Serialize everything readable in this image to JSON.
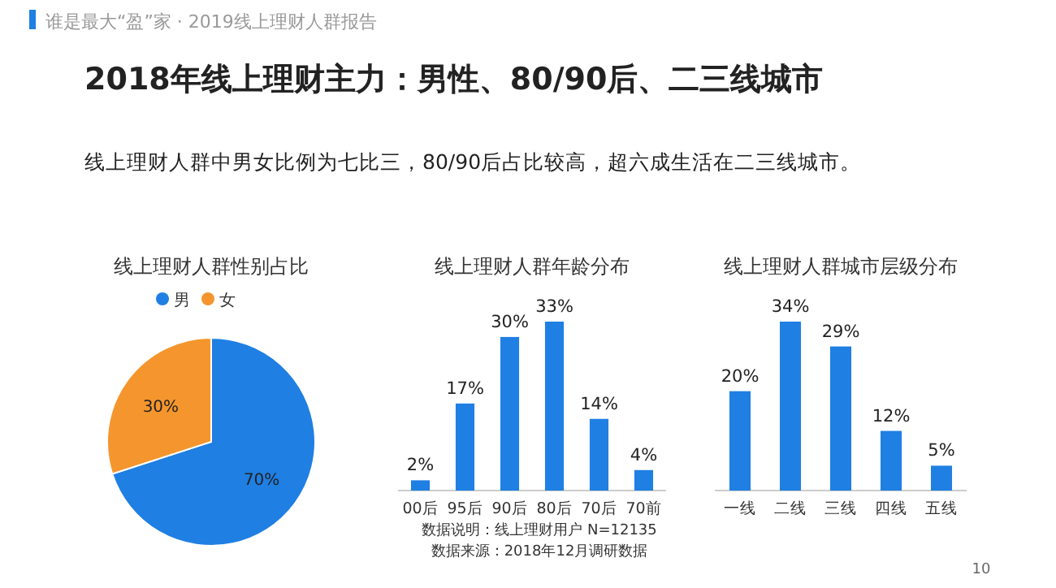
{
  "chart_data": [
    {
      "type": "other",
      "title": "2018年线上理财主力：男性、80/90后、二三线城市",
      "subtitle": "线上理财人群中男女比例为七比三，80/90后占比较高，超六成生活在二三线城市。",
      "annotations": [
        "谁是最大“盈”家 · 2019线上理财人群报告",
        "数据说明：线上理财用户 N=12135",
        "数据来源：2018年12月调研数据",
        "10"
      ]
    },
    {
      "type": "pie",
      "title": "线上理财人群性别占比",
      "categories": [
        "男",
        "女"
      ],
      "values": [
        70,
        30
      ],
      "colors": [
        "#1f7fe3",
        "#f5952d"
      ],
      "value_labels": [
        "70%",
        "30%"
      ],
      "legend": "top"
    },
    {
      "type": "bar",
      "title": "线上理财人群年龄分布",
      "categories": [
        "00后",
        "95后",
        "90后",
        "80后",
        "70后",
        "70前"
      ],
      "values": [
        2,
        17,
        30,
        33,
        14,
        4
      ],
      "color": "#1f7fe3",
      "value_labels": [
        "2%",
        "17%",
        "30%",
        "33%",
        "14%",
        "4%"
      ]
    },
    {
      "type": "bar",
      "title": "线上理财人群城市层级分布",
      "categories": [
        "一线",
        "二线",
        "三线",
        "四线",
        "五线"
      ],
      "values": [
        20,
        34,
        29,
        12,
        5
      ],
      "color": "#1f7fe3",
      "value_labels": [
        "20%",
        "34%",
        "29%",
        "12%",
        "5%"
      ]
    }
  ]
}
